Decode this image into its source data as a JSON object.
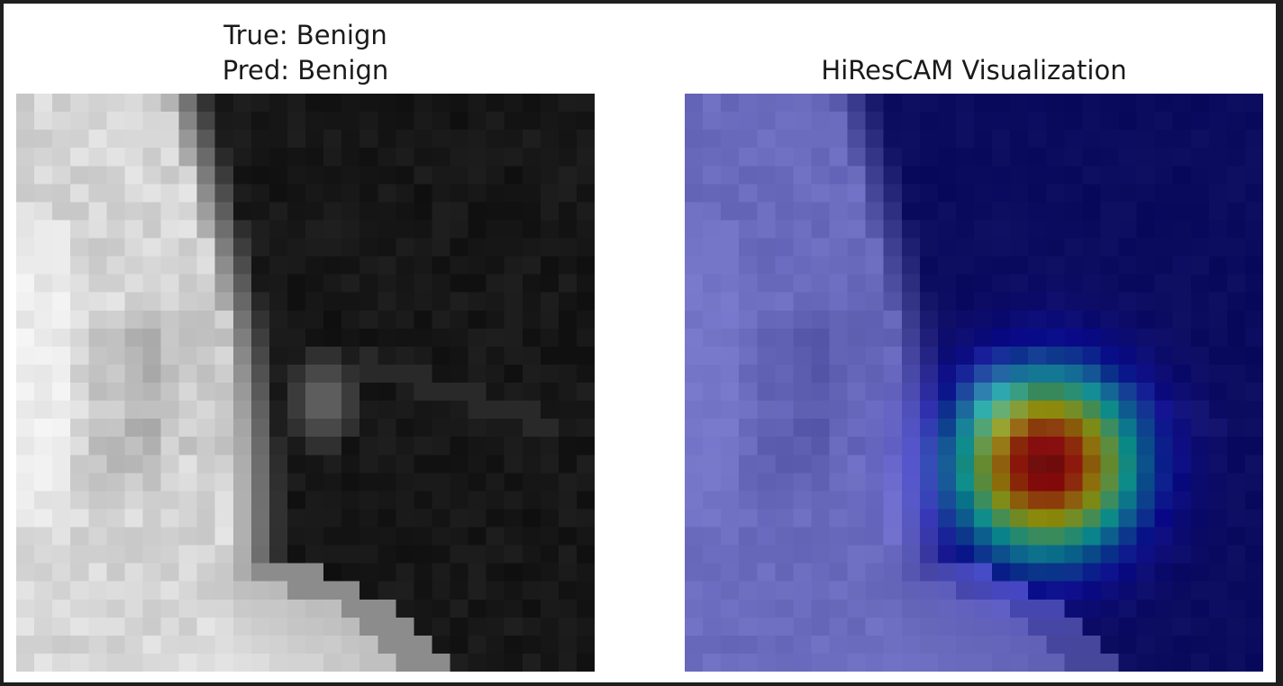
{
  "figure": {
    "left_panel": {
      "title_line1": "True: Benign",
      "title_line2": "Pred: Benign"
    },
    "right_panel": {
      "title": "HiResCAM Visualization"
    }
  },
  "colors": {
    "border": "#1e1e1e",
    "background": "#ffffff",
    "text": "#1a1a1a"
  },
  "image_semantics": {
    "left_image": "grayscale-ultrasound-patch",
    "right_image": "jet-colormap-heatmap-overlay"
  }
}
